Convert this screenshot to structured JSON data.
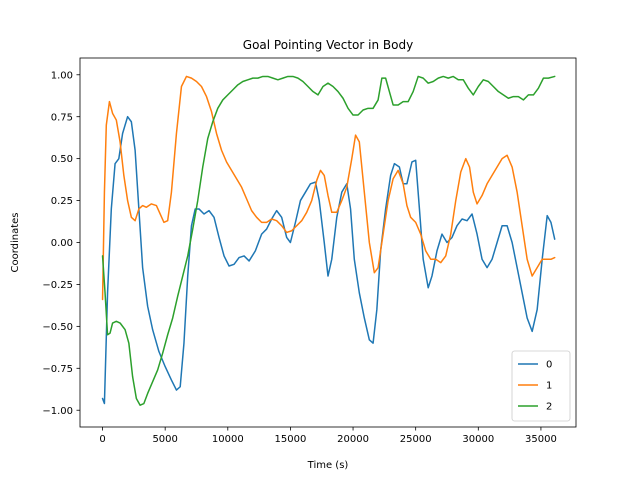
{
  "chart_data": {
    "type": "line",
    "title": "Goal Pointing Vector in Body",
    "xlabel": "Time (s)",
    "ylabel": "Coordinates",
    "xlim": [
      -1800,
      37800
    ],
    "ylim": [
      -1.1,
      1.1
    ],
    "xticks": [
      0,
      5000,
      10000,
      15000,
      20000,
      25000,
      30000,
      35000
    ],
    "xtick_labels": [
      "0",
      "5000",
      "10000",
      "15000",
      "20000",
      "25000",
      "30000",
      "35000"
    ],
    "yticks": [
      -1.0,
      -0.75,
      -0.5,
      -0.25,
      0.0,
      0.25,
      0.5,
      0.75,
      1.0
    ],
    "ytick_labels": [
      "−1.00",
      "−0.75",
      "−0.50",
      "−0.25",
      "0.00",
      "0.25",
      "0.50",
      "0.75",
      "1.00"
    ],
    "grid": false,
    "legend_position": "lower-right",
    "series": [
      {
        "name": "0",
        "color": "#1f77b4",
        "points": [
          [
            0,
            -0.93
          ],
          [
            150,
            -0.96
          ],
          [
            400,
            -0.3
          ],
          [
            700,
            0.2
          ],
          [
            1000,
            0.47
          ],
          [
            1300,
            0.5
          ],
          [
            1600,
            0.65
          ],
          [
            2000,
            0.75
          ],
          [
            2300,
            0.72
          ],
          [
            2600,
            0.55
          ],
          [
            2900,
            0.2
          ],
          [
            3200,
            -0.15
          ],
          [
            3600,
            -0.38
          ],
          [
            4000,
            -0.52
          ],
          [
            4500,
            -0.65
          ],
          [
            5000,
            -0.74
          ],
          [
            5500,
            -0.82
          ],
          [
            5900,
            -0.88
          ],
          [
            6200,
            -0.86
          ],
          [
            6500,
            -0.6
          ],
          [
            6800,
            -0.2
          ],
          [
            7100,
            0.1
          ],
          [
            7400,
            0.2
          ],
          [
            7700,
            0.2
          ],
          [
            8100,
            0.17
          ],
          [
            8500,
            0.19
          ],
          [
            8900,
            0.15
          ],
          [
            9300,
            0.03
          ],
          [
            9700,
            -0.08
          ],
          [
            10100,
            -0.14
          ],
          [
            10500,
            -0.13
          ],
          [
            10900,
            -0.09
          ],
          [
            11300,
            -0.08
          ],
          [
            11700,
            -0.11
          ],
          [
            12200,
            -0.05
          ],
          [
            12700,
            0.05
          ],
          [
            13100,
            0.08
          ],
          [
            13500,
            0.14
          ],
          [
            13900,
            0.19
          ],
          [
            14300,
            0.15
          ],
          [
            14700,
            0.03
          ],
          [
            15000,
            0.0
          ],
          [
            15400,
            0.12
          ],
          [
            15800,
            0.25
          ],
          [
            16200,
            0.3
          ],
          [
            16600,
            0.35
          ],
          [
            17000,
            0.36
          ],
          [
            17300,
            0.25
          ],
          [
            17700,
            0.0
          ],
          [
            18000,
            -0.2
          ],
          [
            18300,
            -0.1
          ],
          [
            18700,
            0.15
          ],
          [
            19100,
            0.3
          ],
          [
            19500,
            0.35
          ],
          [
            19800,
            0.2
          ],
          [
            20100,
            -0.1
          ],
          [
            20500,
            -0.3
          ],
          [
            20900,
            -0.45
          ],
          [
            21300,
            -0.58
          ],
          [
            21600,
            -0.6
          ],
          [
            21900,
            -0.4
          ],
          [
            22200,
            -0.05
          ],
          [
            22600,
            0.2
          ],
          [
            23000,
            0.4
          ],
          [
            23300,
            0.47
          ],
          [
            23700,
            0.45
          ],
          [
            24000,
            0.35
          ],
          [
            24300,
            0.35
          ],
          [
            24700,
            0.48
          ],
          [
            25000,
            0.49
          ],
          [
            25300,
            0.2
          ],
          [
            25600,
            -0.1
          ],
          [
            26000,
            -0.27
          ],
          [
            26300,
            -0.2
          ],
          [
            26700,
            -0.05
          ],
          [
            27100,
            0.05
          ],
          [
            27500,
            0.0
          ],
          [
            27900,
            0.03
          ],
          [
            28300,
            0.1
          ],
          [
            28700,
            0.14
          ],
          [
            29100,
            0.13
          ],
          [
            29500,
            0.17
          ],
          [
            29900,
            0.05
          ],
          [
            30300,
            -0.1
          ],
          [
            30700,
            -0.15
          ],
          [
            31100,
            -0.1
          ],
          [
            31500,
            0.0
          ],
          [
            31900,
            0.1
          ],
          [
            32300,
            0.1
          ],
          [
            32700,
            0.0
          ],
          [
            33100,
            -0.15
          ],
          [
            33500,
            -0.3
          ],
          [
            33900,
            -0.45
          ],
          [
            34300,
            -0.53
          ],
          [
            34700,
            -0.4
          ],
          [
            35100,
            -0.1
          ],
          [
            35500,
            0.16
          ],
          [
            35800,
            0.12
          ],
          [
            36100,
            0.02
          ]
        ]
      },
      {
        "name": "1",
        "color": "#ff7f0e",
        "points": [
          [
            0,
            -0.34
          ],
          [
            150,
            0.3
          ],
          [
            300,
            0.7
          ],
          [
            550,
            0.84
          ],
          [
            800,
            0.77
          ],
          [
            1100,
            0.73
          ],
          [
            1400,
            0.6
          ],
          [
            1700,
            0.4
          ],
          [
            2000,
            0.25
          ],
          [
            2300,
            0.15
          ],
          [
            2600,
            0.13
          ],
          [
            2900,
            0.2
          ],
          [
            3200,
            0.22
          ],
          [
            3500,
            0.21
          ],
          [
            3900,
            0.23
          ],
          [
            4300,
            0.22
          ],
          [
            4600,
            0.17
          ],
          [
            4900,
            0.12
          ],
          [
            5200,
            0.13
          ],
          [
            5500,
            0.3
          ],
          [
            5900,
            0.65
          ],
          [
            6300,
            0.93
          ],
          [
            6700,
            0.99
          ],
          [
            7100,
            0.98
          ],
          [
            7500,
            0.96
          ],
          [
            7900,
            0.93
          ],
          [
            8300,
            0.87
          ],
          [
            8700,
            0.78
          ],
          [
            9100,
            0.65
          ],
          [
            9500,
            0.55
          ],
          [
            9900,
            0.48
          ],
          [
            10300,
            0.43
          ],
          [
            10700,
            0.38
          ],
          [
            11100,
            0.33
          ],
          [
            11500,
            0.26
          ],
          [
            11900,
            0.19
          ],
          [
            12300,
            0.15
          ],
          [
            12700,
            0.12
          ],
          [
            13100,
            0.12
          ],
          [
            13500,
            0.14
          ],
          [
            13900,
            0.13
          ],
          [
            14300,
            0.1
          ],
          [
            14700,
            0.06
          ],
          [
            15100,
            0.07
          ],
          [
            15500,
            0.1
          ],
          [
            15900,
            0.13
          ],
          [
            16300,
            0.18
          ],
          [
            16700,
            0.25
          ],
          [
            17100,
            0.37
          ],
          [
            17400,
            0.43
          ],
          [
            17700,
            0.4
          ],
          [
            18000,
            0.28
          ],
          [
            18300,
            0.18
          ],
          [
            18700,
            0.18
          ],
          [
            19100,
            0.25
          ],
          [
            19500,
            0.33
          ],
          [
            19900,
            0.5
          ],
          [
            20200,
            0.64
          ],
          [
            20500,
            0.6
          ],
          [
            20900,
            0.3
          ],
          [
            21300,
            0.0
          ],
          [
            21700,
            -0.18
          ],
          [
            22000,
            -0.15
          ],
          [
            22400,
            0.05
          ],
          [
            22800,
            0.25
          ],
          [
            23200,
            0.38
          ],
          [
            23600,
            0.43
          ],
          [
            24000,
            0.35
          ],
          [
            24300,
            0.22
          ],
          [
            24600,
            0.15
          ],
          [
            25000,
            0.12
          ],
          [
            25400,
            0.05
          ],
          [
            25800,
            -0.05
          ],
          [
            26200,
            -0.1
          ],
          [
            26600,
            -0.1
          ],
          [
            27000,
            -0.12
          ],
          [
            27400,
            -0.08
          ],
          [
            27800,
            0.05
          ],
          [
            28200,
            0.25
          ],
          [
            28600,
            0.42
          ],
          [
            29000,
            0.5
          ],
          [
            29300,
            0.45
          ],
          [
            29600,
            0.3
          ],
          [
            29900,
            0.23
          ],
          [
            30300,
            0.28
          ],
          [
            30700,
            0.35
          ],
          [
            31100,
            0.4
          ],
          [
            31500,
            0.45
          ],
          [
            31900,
            0.5
          ],
          [
            32300,
            0.52
          ],
          [
            32700,
            0.45
          ],
          [
            33100,
            0.3
          ],
          [
            33500,
            0.1
          ],
          [
            33900,
            -0.1
          ],
          [
            34300,
            -0.2
          ],
          [
            34700,
            -0.15
          ],
          [
            35100,
            -0.1
          ],
          [
            35500,
            -0.1
          ],
          [
            35800,
            -0.1
          ],
          [
            36100,
            -0.09
          ]
        ]
      },
      {
        "name": "2",
        "color": "#2ca02c",
        "points": [
          [
            0,
            -0.08
          ],
          [
            200,
            -0.3
          ],
          [
            400,
            -0.55
          ],
          [
            600,
            -0.54
          ],
          [
            800,
            -0.48
          ],
          [
            1100,
            -0.47
          ],
          [
            1400,
            -0.48
          ],
          [
            1800,
            -0.52
          ],
          [
            2100,
            -0.6
          ],
          [
            2400,
            -0.8
          ],
          [
            2700,
            -0.93
          ],
          [
            3000,
            -0.97
          ],
          [
            3300,
            -0.96
          ],
          [
            3600,
            -0.9
          ],
          [
            4000,
            -0.83
          ],
          [
            4400,
            -0.76
          ],
          [
            4800,
            -0.66
          ],
          [
            5200,
            -0.55
          ],
          [
            5600,
            -0.45
          ],
          [
            6000,
            -0.32
          ],
          [
            6400,
            -0.2
          ],
          [
            6800,
            -0.08
          ],
          [
            7200,
            0.08
          ],
          [
            7600,
            0.25
          ],
          [
            8000,
            0.45
          ],
          [
            8400,
            0.62
          ],
          [
            8800,
            0.72
          ],
          [
            9200,
            0.8
          ],
          [
            9600,
            0.85
          ],
          [
            10000,
            0.88
          ],
          [
            10400,
            0.91
          ],
          [
            10800,
            0.94
          ],
          [
            11200,
            0.96
          ],
          [
            11600,
            0.97
          ],
          [
            12000,
            0.98
          ],
          [
            12400,
            0.98
          ],
          [
            12800,
            0.99
          ],
          [
            13200,
            0.99
          ],
          [
            13600,
            0.98
          ],
          [
            14000,
            0.97
          ],
          [
            14400,
            0.98
          ],
          [
            14800,
            0.99
          ],
          [
            15200,
            0.99
          ],
          [
            15600,
            0.98
          ],
          [
            16000,
            0.96
          ],
          [
            16400,
            0.93
          ],
          [
            16800,
            0.9
          ],
          [
            17200,
            0.88
          ],
          [
            17600,
            0.93
          ],
          [
            18000,
            0.95
          ],
          [
            18400,
            0.93
          ],
          [
            18800,
            0.9
          ],
          [
            19200,
            0.86
          ],
          [
            19600,
            0.8
          ],
          [
            20000,
            0.76
          ],
          [
            20400,
            0.76
          ],
          [
            20800,
            0.79
          ],
          [
            21200,
            0.8
          ],
          [
            21600,
            0.8
          ],
          [
            22000,
            0.85
          ],
          [
            22300,
            0.98
          ],
          [
            22600,
            0.98
          ],
          [
            22900,
            0.9
          ],
          [
            23200,
            0.82
          ],
          [
            23600,
            0.82
          ],
          [
            24000,
            0.84
          ],
          [
            24400,
            0.84
          ],
          [
            24800,
            0.9
          ],
          [
            25200,
            0.99
          ],
          [
            25600,
            0.98
          ],
          [
            26000,
            0.95
          ],
          [
            26400,
            0.96
          ],
          [
            26800,
            0.98
          ],
          [
            27200,
            0.99
          ],
          [
            27600,
            0.98
          ],
          [
            28000,
            0.99
          ],
          [
            28400,
            0.97
          ],
          [
            28800,
            0.97
          ],
          [
            29200,
            0.92
          ],
          [
            29600,
            0.88
          ],
          [
            30000,
            0.93
          ],
          [
            30400,
            0.97
          ],
          [
            30800,
            0.96
          ],
          [
            31200,
            0.93
          ],
          [
            31600,
            0.9
          ],
          [
            32000,
            0.88
          ],
          [
            32400,
            0.86
          ],
          [
            32800,
            0.87
          ],
          [
            33200,
            0.87
          ],
          [
            33600,
            0.85
          ],
          [
            34000,
            0.88
          ],
          [
            34400,
            0.88
          ],
          [
            34800,
            0.92
          ],
          [
            35200,
            0.98
          ],
          [
            35600,
            0.98
          ],
          [
            36100,
            0.99
          ]
        ]
      }
    ]
  }
}
